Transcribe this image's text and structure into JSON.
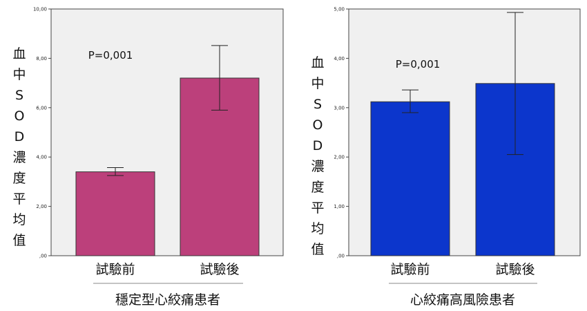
{
  "chart_data": [
    {
      "type": "bar",
      "title": "",
      "ylabel": "血中SOD濃度平均值",
      "xlabel": "穩定型心絞痛患者",
      "categories": [
        "試驗前",
        "試驗後"
      ],
      "values": [
        3.4,
        7.2
      ],
      "error_low": [
        3.25,
        5.9
      ],
      "error_high": [
        3.57,
        8.52
      ],
      "ylim": [
        0,
        10
      ],
      "yticks": [
        0,
        2,
        4,
        6,
        8,
        10
      ],
      "ytick_labels": [
        ",00",
        "2,00",
        "4,00",
        "6,00",
        "8,00",
        "10,00"
      ],
      "annotation": "P=0,001",
      "bar_color": "#BC407B",
      "plot_bg": "#F0F0F0"
    },
    {
      "type": "bar",
      "title": "",
      "ylabel": "血中SOD濃度平均值",
      "xlabel": "心絞痛高風險患者",
      "categories": [
        "試驗前",
        "試驗後"
      ],
      "values": [
        3.12,
        3.49
      ],
      "error_low": [
        2.9,
        2.05
      ],
      "error_high": [
        3.36,
        4.93
      ],
      "ylim": [
        0,
        5
      ],
      "yticks": [
        0,
        1,
        2,
        3,
        4,
        5
      ],
      "ytick_labels": [
        ",00",
        "1,00",
        "2,00",
        "3,00",
        "4,00",
        "5,00"
      ],
      "annotation": "P=0,001",
      "bar_color": "#0C36CC",
      "plot_bg": "#F0F0F0"
    }
  ]
}
